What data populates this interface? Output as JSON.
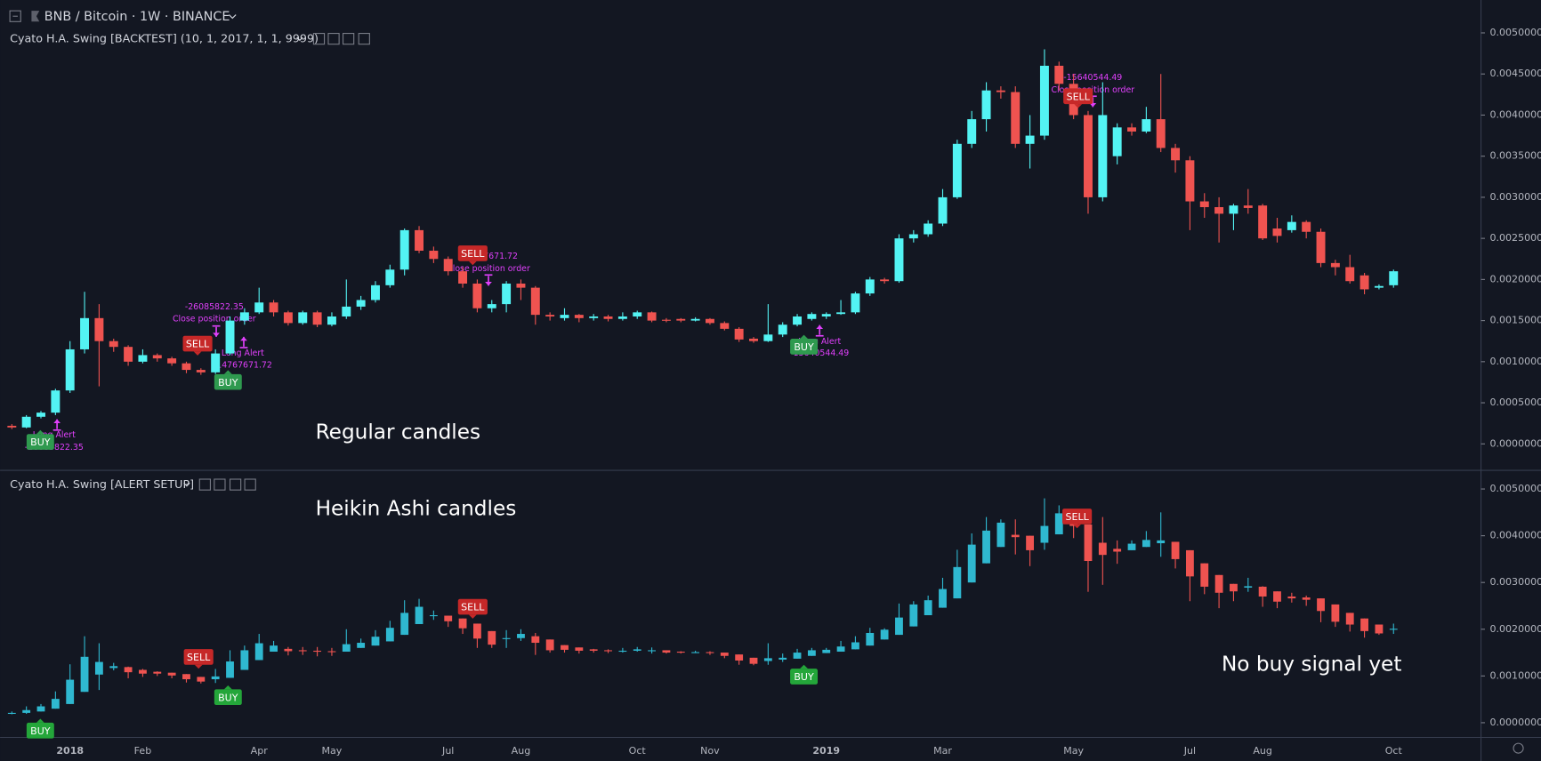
{
  "header": {
    "title": "BNB / Bitcoin · 1W · BINANCE"
  },
  "chart_data": [
    {
      "type": "candlestick",
      "title": "Cyato H.A. Swing [BACKTEST] (10, 1, 2017, 1, 1, 9999)",
      "annotations": [
        "Regular candles"
      ],
      "up_color": "#53f3f3",
      "down_color": "#ef5350",
      "buy_color": "#2f9a4f",
      "sell_color": "#c62828",
      "order_color": "#e040fb",
      "signals": [
        "BUY",
        "SELL",
        "BUY",
        "SELL",
        "BUY",
        "SELL"
      ],
      "order_labels": [
        "Long Alert",
        "-26085822.35",
        "-26085822.35",
        "Close position order",
        "Long Alert",
        "-14767671.72",
        "-14767671.72",
        "Close position order",
        "Long Alert",
        "-15640544.49",
        "-15640544.49",
        "Close position order"
      ],
      "ylim": [
        -0.00031,
        0.0054
      ],
      "yticks": [
        {
          "value": 0,
          "label": "0.0000000"
        },
        {
          "value": 0.0005,
          "label": "0.0005000"
        },
        {
          "value": 0.001,
          "label": "0.0010000"
        },
        {
          "value": 0.0015,
          "label": "0.0015000"
        },
        {
          "value": 0.002,
          "label": "0.0020000"
        },
        {
          "value": 0.0025,
          "label": "0.0025000"
        },
        {
          "value": 0.003,
          "label": "0.0030000"
        },
        {
          "value": 0.0035,
          "label": "0.0035000"
        },
        {
          "value": 0.004,
          "label": "0.0040000"
        },
        {
          "value": 0.0045,
          "label": "0.0045000"
        },
        {
          "value": 0.005,
          "label": "0.0050000"
        }
      ],
      "open": [
        0.00022,
        0.0002,
        0.00033,
        0.00038,
        0.00065,
        0.00115,
        0.00153,
        0.00125,
        0.00118,
        0.001,
        0.00108,
        0.00104,
        0.00098,
        0.0009,
        0.00087,
        0.0011,
        0.0015,
        0.0016,
        0.00172,
        0.0016,
        0.00147,
        0.0016,
        0.00145,
        0.00155,
        0.00167,
        0.00175,
        0.00193,
        0.00212,
        0.0026,
        0.00235,
        0.00225,
        0.0021,
        0.00195,
        0.00165,
        0.0017,
        0.00195,
        0.0019,
        0.00157,
        0.00153,
        0.00157,
        0.00153,
        0.00155,
        0.00152,
        0.00155,
        0.0016,
        0.00151,
        0.00152,
        0.0015,
        0.00152,
        0.00147,
        0.0014,
        0.00128,
        0.00125,
        0.00133,
        0.00145,
        0.00152,
        0.00155,
        0.00158,
        0.0016,
        0.00183,
        0.002,
        0.00198,
        0.0025,
        0.00255,
        0.00268,
        0.003,
        0.00365,
        0.00395,
        0.0043,
        0.00428,
        0.00365,
        0.00375,
        0.0046,
        0.00438,
        0.004,
        0.003,
        0.0035,
        0.00385,
        0.0038,
        0.00395,
        0.0036,
        0.00345,
        0.00295,
        0.00288,
        0.0028,
        0.0029,
        0.0029,
        0.00262,
        0.0026,
        0.0027,
        0.00258,
        0.0022,
        0.00215,
        0.00205,
        0.0019,
        0.00193
      ],
      "high": [
        0.00024,
        0.00035,
        0.0004,
        0.00067,
        0.00125,
        0.00185,
        0.0017,
        0.00128,
        0.0012,
        0.00115,
        0.0011,
        0.00106,
        0.001,
        0.00092,
        0.00115,
        0.00155,
        0.00165,
        0.0019,
        0.00175,
        0.00162,
        0.00162,
        0.00162,
        0.0016,
        0.002,
        0.0018,
        0.00198,
        0.00218,
        0.00262,
        0.00265,
        0.0024,
        0.00228,
        0.00215,
        0.002,
        0.00175,
        0.00198,
        0.002,
        0.00192,
        0.0016,
        0.00165,
        0.00158,
        0.00158,
        0.00157,
        0.0016,
        0.00162,
        0.00161,
        0.00153,
        0.00153,
        0.00154,
        0.00153,
        0.00149,
        0.00142,
        0.0013,
        0.0017,
        0.00148,
        0.00158,
        0.0016,
        0.0016,
        0.00175,
        0.00185,
        0.00203,
        0.00202,
        0.00255,
        0.0026,
        0.00272,
        0.0031,
        0.0037,
        0.00405,
        0.0044,
        0.00435,
        0.00435,
        0.004,
        0.0048,
        0.00465,
        0.0045,
        0.00405,
        0.0044,
        0.0039,
        0.0039,
        0.0041,
        0.0045,
        0.00365,
        0.0035,
        0.00305,
        0.003,
        0.00292,
        0.0031,
        0.00292,
        0.00275,
        0.00278,
        0.00272,
        0.00262,
        0.00224,
        0.0023,
        0.00208,
        0.00194,
        0.00212
      ],
      "low": [
        0.00018,
        0.00019,
        0.00031,
        0.00035,
        0.00062,
        0.0011,
        0.0007,
        0.00112,
        0.00095,
        0.00098,
        0.001,
        0.00095,
        0.00086,
        0.00084,
        0.00085,
        0.00108,
        0.00145,
        0.00158,
        0.00155,
        0.00144,
        0.00145,
        0.00142,
        0.00143,
        0.00152,
        0.00163,
        0.00172,
        0.0019,
        0.00205,
        0.00232,
        0.0022,
        0.00205,
        0.0019,
        0.0016,
        0.0016,
        0.0016,
        0.00175,
        0.00145,
        0.0015,
        0.0015,
        0.00148,
        0.0015,
        0.00149,
        0.0015,
        0.00152,
        0.00148,
        0.00148,
        0.00148,
        0.00149,
        0.00145,
        0.00138,
        0.00124,
        0.00123,
        0.00124,
        0.0013,
        0.00143,
        0.0015,
        0.00152,
        0.00157,
        0.00158,
        0.0018,
        0.00195,
        0.00196,
        0.00245,
        0.00252,
        0.00265,
        0.00298,
        0.0036,
        0.0038,
        0.0042,
        0.0036,
        0.00335,
        0.0037,
        0.0043,
        0.00395,
        0.0028,
        0.00295,
        0.0034,
        0.00375,
        0.00378,
        0.00355,
        0.0033,
        0.0026,
        0.00275,
        0.00245,
        0.0026,
        0.0028,
        0.00248,
        0.00245,
        0.00257,
        0.0025,
        0.00215,
        0.00205,
        0.00195,
        0.00182,
        0.00188,
        0.0019
      ],
      "close": [
        0.0002,
        0.00033,
        0.00038,
        0.00065,
        0.00115,
        0.00153,
        0.00125,
        0.00118,
        0.001,
        0.00108,
        0.00104,
        0.00098,
        0.0009,
        0.00087,
        0.0011,
        0.0015,
        0.0016,
        0.00172,
        0.0016,
        0.00147,
        0.0016,
        0.00145,
        0.00155,
        0.00167,
        0.00175,
        0.00193,
        0.00212,
        0.0026,
        0.00235,
        0.00225,
        0.0021,
        0.00195,
        0.00165,
        0.0017,
        0.00195,
        0.0019,
        0.00157,
        0.00155,
        0.00157,
        0.00153,
        0.00155,
        0.00152,
        0.00155,
        0.0016,
        0.0015,
        0.0015,
        0.0015,
        0.00152,
        0.00147,
        0.0014,
        0.00127,
        0.00125,
        0.00133,
        0.00145,
        0.00155,
        0.00158,
        0.00158,
        0.0016,
        0.00183,
        0.002,
        0.00198,
        0.0025,
        0.00255,
        0.00268,
        0.003,
        0.00365,
        0.00395,
        0.0043,
        0.00428,
        0.00365,
        0.00375,
        0.0046,
        0.00438,
        0.004,
        0.003,
        0.004,
        0.00385,
        0.0038,
        0.00395,
        0.0036,
        0.00345,
        0.00295,
        0.00288,
        0.0028,
        0.0029,
        0.00287,
        0.0025,
        0.00253,
        0.0027,
        0.00258,
        0.0022,
        0.00215,
        0.00198,
        0.00188,
        0.00192,
        0.0021
      ]
    },
    {
      "type": "candlestick",
      "title": "Cyato H.A. Swing [ALERT SETUP]",
      "annotations": [
        "Heikin Ashi candles",
        "No buy signal yet"
      ],
      "up_color": "#2fb8d0",
      "down_color": "#ef5350",
      "buy_color": "#24a63a",
      "sell_color": "#c62828",
      "signals": [
        "BUY",
        "SELL",
        "BUY",
        "SELL",
        "BUY",
        "SELL"
      ],
      "ylim": [
        -0.000294,
        0.005378
      ],
      "yticks": [
        {
          "value": 0,
          "label": "0.0000000"
        },
        {
          "value": 0.001,
          "label": "0.0010000"
        },
        {
          "value": 0.002,
          "label": "0.0020000"
        },
        {
          "value": 0.003,
          "label": "0.0030000"
        },
        {
          "value": 0.004,
          "label": "0.0040000"
        },
        {
          "value": 0.005,
          "label": "0.0050000"
        }
      ],
      "categories": [
        null,
        null,
        null,
        null,
        "2018",
        null,
        null,
        null,
        null,
        "Feb",
        null,
        null,
        null,
        null,
        null,
        null,
        null,
        "Apr",
        null,
        null,
        null,
        null,
        "May",
        null,
        null,
        null,
        null,
        null,
        null,
        null,
        "Jul",
        null,
        null,
        null,
        null,
        "Aug",
        null,
        null,
        null,
        null,
        null,
        null,
        null,
        "Oct",
        null,
        null,
        null,
        null,
        "Nov",
        null,
        null,
        null,
        null,
        null,
        null,
        null,
        "2019",
        null,
        null,
        null,
        null,
        null,
        null,
        null,
        "Mar",
        null,
        null,
        null,
        null,
        null,
        null,
        null,
        null,
        "May",
        null,
        null,
        null,
        null,
        null,
        null,
        null,
        "Jul",
        null,
        null,
        null,
        null,
        "Aug",
        null,
        null,
        null,
        null,
        null,
        null,
        null,
        null,
        "Oct"
      ],
      "open": [
        0.00021,
        0.00021,
        0.00024,
        0.0003,
        0.0004,
        0.00066,
        0.00103,
        0.00117,
        0.00119,
        0.00113,
        0.00109,
        0.00107,
        0.00104,
        0.00098,
        0.00093,
        0.00096,
        0.00113,
        0.00134,
        0.00152,
        0.00158,
        0.00155,
        0.00154,
        0.00153,
        0.00152,
        0.0016,
        0.00165,
        0.00174,
        0.00188,
        0.00211,
        0.00229,
        0.00229,
        0.00223,
        0.00212,
        0.00196,
        0.00181,
        0.00181,
        0.00185,
        0.00178,
        0.00166,
        0.00161,
        0.00157,
        0.00155,
        0.00154,
        0.00154,
        0.00155,
        0.00155,
        0.00152,
        0.00151,
        0.00151,
        0.0015,
        0.00146,
        0.00139,
        0.00132,
        0.00135,
        0.00137,
        0.00143,
        0.00149,
        0.00152,
        0.00157,
        0.00165,
        0.00178,
        0.00188,
        0.00206,
        0.0023,
        0.00246,
        0.00266,
        0.003,
        0.00341,
        0.00376,
        0.00402,
        0.004,
        0.00385,
        0.00403,
        0.00426,
        0.00424,
        0.00385,
        0.00372,
        0.00369,
        0.00376,
        0.00384,
        0.00387,
        0.00369,
        0.00341,
        0.00316,
        0.00297,
        0.00289,
        0.00291,
        0.00281,
        0.0027,
        0.00268,
        0.00266,
        0.00253,
        0.00235,
        0.00223,
        0.0021,
        0.00201
      ],
      "high": [
        0.00024,
        0.00035,
        0.0004,
        0.00067,
        0.00125,
        0.00185,
        0.0017,
        0.00128,
        0.0012,
        0.00115,
        0.0011,
        0.00107,
        0.00104,
        0.00098,
        0.00115,
        0.00155,
        0.00165,
        0.0019,
        0.00175,
        0.00162,
        0.00162,
        0.00162,
        0.0016,
        0.002,
        0.0018,
        0.00198,
        0.00218,
        0.00262,
        0.00265,
        0.0024,
        0.00229,
        0.00223,
        0.00212,
        0.00196,
        0.00198,
        0.002,
        0.00192,
        0.00178,
        0.00166,
        0.00161,
        0.00158,
        0.00157,
        0.0016,
        0.00162,
        0.00161,
        0.00155,
        0.00153,
        0.00154,
        0.00153,
        0.0015,
        0.00146,
        0.00139,
        0.0017,
        0.00148,
        0.00158,
        0.0016,
        0.0016,
        0.00175,
        0.00185,
        0.00203,
        0.00202,
        0.00255,
        0.0026,
        0.00272,
        0.0031,
        0.0037,
        0.00405,
        0.0044,
        0.00435,
        0.00435,
        0.004,
        0.0048,
        0.00465,
        0.0045,
        0.00424,
        0.0044,
        0.0039,
        0.0039,
        0.0041,
        0.0045,
        0.00387,
        0.00369,
        0.00341,
        0.00316,
        0.00297,
        0.0031,
        0.00292,
        0.00281,
        0.00278,
        0.00272,
        0.00266,
        0.00253,
        0.00235,
        0.00223,
        0.0021,
        0.00212
      ],
      "low": [
        0.00018,
        0.00019,
        0.00024,
        0.0003,
        0.0004,
        0.00066,
        0.0007,
        0.00112,
        0.00095,
        0.00098,
        0.001,
        0.00095,
        0.00086,
        0.00084,
        0.00085,
        0.00096,
        0.00113,
        0.00134,
        0.00152,
        0.00144,
        0.00145,
        0.00142,
        0.00143,
        0.00152,
        0.0016,
        0.00165,
        0.00174,
        0.00188,
        0.00211,
        0.0022,
        0.00205,
        0.0019,
        0.0016,
        0.0016,
        0.0016,
        0.00175,
        0.00145,
        0.0015,
        0.0015,
        0.00148,
        0.0015,
        0.00149,
        0.0015,
        0.00152,
        0.00148,
        0.00148,
        0.00148,
        0.00149,
        0.00145,
        0.00138,
        0.00124,
        0.00123,
        0.00124,
        0.0013,
        0.00137,
        0.00143,
        0.00149,
        0.00152,
        0.00157,
        0.00165,
        0.00178,
        0.00188,
        0.00206,
        0.0023,
        0.00246,
        0.00266,
        0.003,
        0.00341,
        0.00376,
        0.0036,
        0.00335,
        0.0037,
        0.00403,
        0.00395,
        0.0028,
        0.00295,
        0.0034,
        0.00369,
        0.00376,
        0.00355,
        0.0033,
        0.0026,
        0.00275,
        0.00245,
        0.0026,
        0.0028,
        0.00248,
        0.00245,
        0.00257,
        0.0025,
        0.00215,
        0.00205,
        0.00195,
        0.00182,
        0.00188,
        0.0019
      ],
      "close": [
        0.00021,
        0.00027,
        0.00035,
        0.00051,
        0.00092,
        0.00141,
        0.0013,
        0.00121,
        0.00108,
        0.00105,
        0.00105,
        0.00101,
        0.00093,
        0.00088,
        0.00099,
        0.00131,
        0.00155,
        0.0017,
        0.00165,
        0.00153,
        0.00153,
        0.00152,
        0.00151,
        0.00168,
        0.00171,
        0.00184,
        0.00203,
        0.00235,
        0.00248,
        0.0023,
        0.00217,
        0.00202,
        0.0018,
        0.00167,
        0.00181,
        0.0019,
        0.00171,
        0.00155,
        0.00156,
        0.00154,
        0.00154,
        0.00153,
        0.00154,
        0.00157,
        0.00155,
        0.0015,
        0.00151,
        0.00151,
        0.00149,
        0.00143,
        0.00133,
        0.00126,
        0.00138,
        0.00139,
        0.0015,
        0.00155,
        0.00156,
        0.00163,
        0.00172,
        0.00192,
        0.00199,
        0.00225,
        0.00253,
        0.00262,
        0.00286,
        0.00333,
        0.00381,
        0.00411,
        0.00428,
        0.00397,
        0.00369,
        0.00421,
        0.00448,
        0.00421,
        0.00346,
        0.00359,
        0.00366,
        0.00383,
        0.00391,
        0.0039,
        0.0035,
        0.00313,
        0.00291,
        0.00278,
        0.00281,
        0.00292,
        0.0027,
        0.00259,
        0.00266,
        0.00263,
        0.00239,
        0.00216,
        0.0021,
        0.00196,
        0.00191,
        0.00201
      ]
    }
  ]
}
